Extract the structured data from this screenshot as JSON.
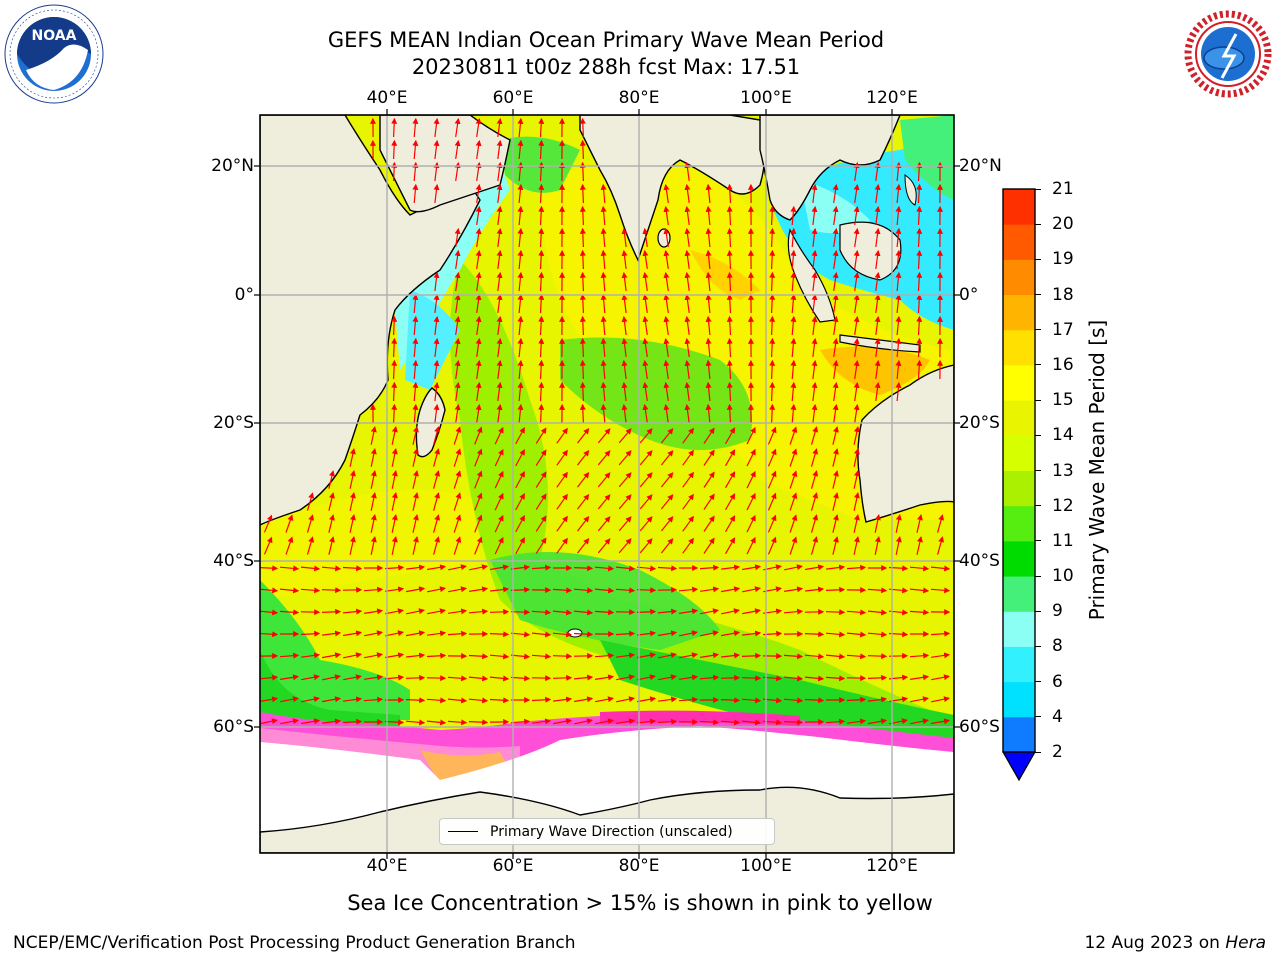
{
  "title": {
    "line1": "GEFS MEAN Indian Ocean Primary Wave Mean Period",
    "line2": "20230811 t00z 288h fcst   Max: 17.51"
  },
  "map": {
    "lon_ticks": [
      "40°E",
      "60°E",
      "80°E",
      "100°E",
      "120°E"
    ],
    "lat_ticks": [
      "20°N",
      "0°",
      "20°S",
      "40°S",
      "60°S"
    ],
    "extent": {
      "lon": [
        20,
        130
      ],
      "lat": [
        -74,
        28
      ]
    },
    "land_color": "#efeedd",
    "grid": true
  },
  "colorbar": {
    "title": "Primary Wave Mean Period [s]",
    "levels": [
      "2",
      "4",
      "6",
      "8",
      "9",
      "10",
      "11",
      "12",
      "13",
      "14",
      "15",
      "16",
      "17",
      "18",
      "19",
      "20",
      "21"
    ],
    "colors": [
      "#0f7bff",
      "#00e0ff",
      "#33f0ff",
      "#8cfff5",
      "#44f07a",
      "#00dc00",
      "#55ee10",
      "#aaf000",
      "#d6ff00",
      "#e9f500",
      "#ffff00",
      "#ffe000",
      "#ffb400",
      "#ff8c00",
      "#ff5a00",
      "#ff3000",
      "#ff0000"
    ],
    "extend_min_color": "#0000ff"
  },
  "legend": {
    "label": "Primary Wave Direction (unscaled)"
  },
  "note": "Sea Ice Concentration > 15% is shown in pink to yellow",
  "footer": {
    "left": "NCEP/EMC/Verification Post Processing Product Generation Branch",
    "date": "12 Aug 2023 on ",
    "machine": "Hera"
  },
  "logos": {
    "left": "NOAA",
    "right": "NATIONAL WEATHER SERVICE"
  }
}
